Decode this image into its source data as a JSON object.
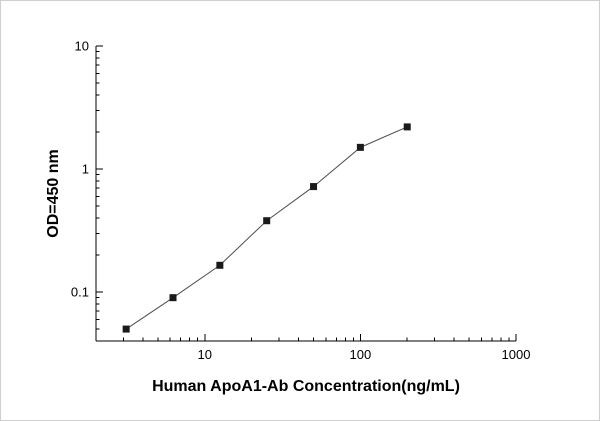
{
  "figure": {
    "background": "#ffffff",
    "border_color": "#cfcfcf"
  },
  "chart_data": {
    "type": "line",
    "x": [
      3.125,
      6.25,
      12.5,
      25,
      50,
      100,
      200
    ],
    "y": [
      0.05,
      0.09,
      0.165,
      0.38,
      0.72,
      1.5,
      2.2
    ],
    "title": "",
    "xlabel": "Human ApoA1-Ab Concentration(ng/mL)",
    "ylabel": "OD=450 nm",
    "xscale": "log",
    "yscale": "log",
    "xlim": [
      2,
      1000
    ],
    "ylim": [
      0.04,
      10
    ],
    "x_major_ticks": [
      10,
      100,
      1000
    ],
    "y_major_ticks": [
      0.1,
      1,
      10
    ],
    "marker": "square",
    "marker_color": "#1a1a1a",
    "line_color": "#4d4d4d",
    "axis_color": "#000000",
    "grid": false,
    "legend": "none"
  }
}
